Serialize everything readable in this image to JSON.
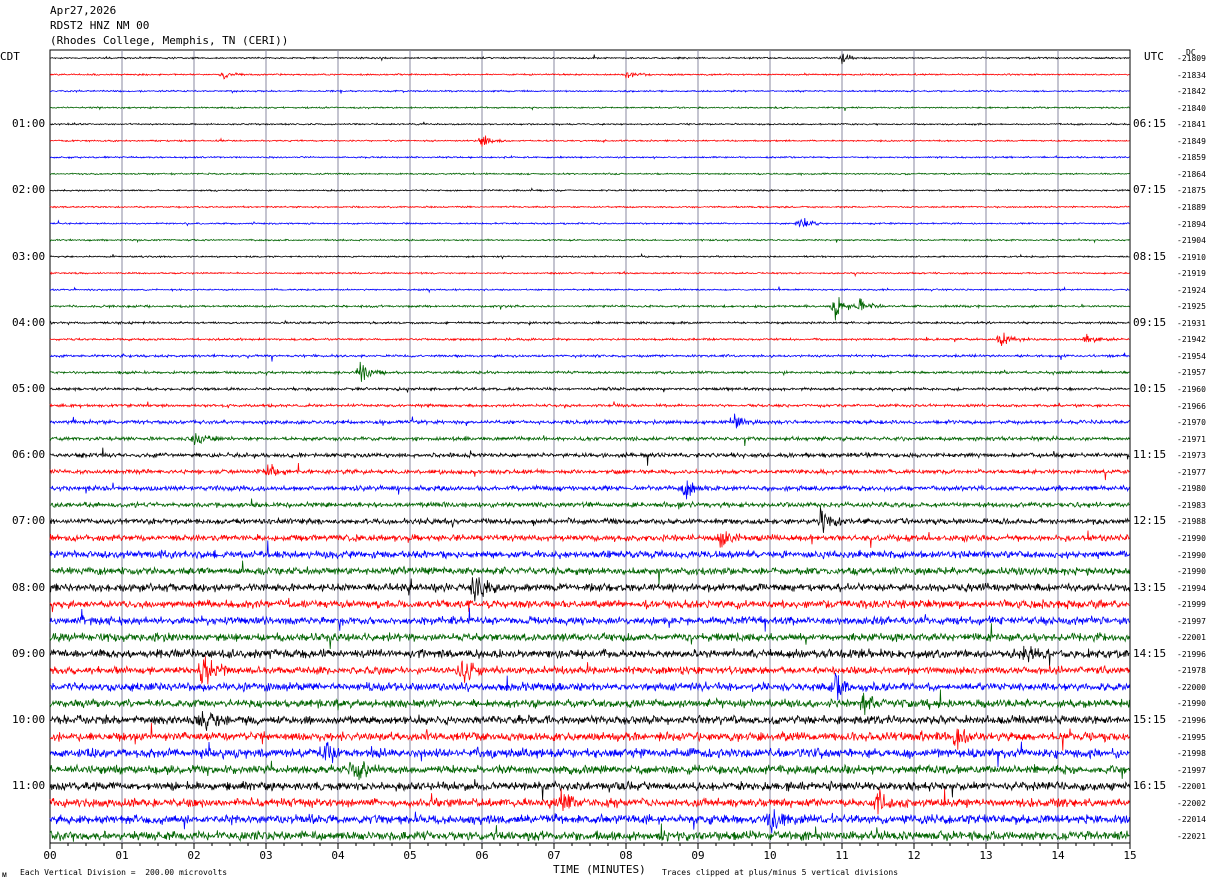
{
  "header": {
    "date": "Apr27,2026",
    "station": "RDST2 HNZ NM 00",
    "location": "(Rhodes College, Memphis, TN (CERI))"
  },
  "left_timezone": "CDT",
  "right_timezone": "UTC",
  "dc_label": "DC",
  "footer": {
    "left_note": "Each Vertical Division =  200.00 microvolts",
    "xlabel": "TIME (MINUTES)",
    "right_note": "Traces clipped at plus/minus 5 vertical divisions",
    "corner_mark": "ᴍ"
  },
  "chart_data": {
    "type": "line",
    "xlabel": "TIME (MINUTES)",
    "xlim": [
      0,
      15
    ],
    "x_ticks": [
      "00",
      "01",
      "02",
      "03",
      "04",
      "05",
      "06",
      "07",
      "08",
      "09",
      "10",
      "11",
      "12",
      "13",
      "14",
      "15"
    ],
    "trace_count": 48,
    "trace_colors": [
      "#000000",
      "#ff0000",
      "#0000ff",
      "#006400"
    ],
    "left_hour_labels": [
      "01:00",
      "02:00",
      "03:00",
      "04:00",
      "05:00",
      "06:00",
      "07:00",
      "08:00",
      "09:00",
      "10:00",
      "11:00"
    ],
    "right_hour_labels": [
      "06:15",
      "07:15",
      "08:15",
      "09:15",
      "10:15",
      "11:15",
      "12:15",
      "13:15",
      "14:15",
      "15:15",
      "16:15"
    ],
    "dc_offsets": [
      "-21809",
      "-21834",
      "-21842",
      "-21840",
      "-21841",
      "-21849",
      "-21859",
      "-21864",
      "-21875",
      "-21889",
      "-21894",
      "-21904",
      "-21910",
      "-21919",
      "-21924",
      "-21925",
      "-21931",
      "-21942",
      "-21954",
      "-21957",
      "-21960",
      "-21966",
      "-21970",
      "-21971",
      "-21973",
      "-21977",
      "-21980",
      "-21983",
      "-21988",
      "-21990",
      "-21990",
      "-21990",
      "-21994",
      "-21999",
      "-21997",
      "-22001",
      "-21996",
      "-21978",
      "-22000",
      "-21990",
      "-21996",
      "-21995",
      "-21998",
      "-21997",
      "-22001",
      "-22002",
      "-22014",
      "-22021"
    ],
    "noise_levels": [
      0.5,
      0.5,
      0.5,
      0.5,
      0.5,
      0.5,
      0.5,
      0.5,
      0.5,
      0.5,
      0.5,
      0.5,
      0.5,
      0.5,
      0.5,
      0.7,
      0.7,
      0.7,
      0.8,
      0.8,
      0.9,
      0.9,
      1.2,
      1.2,
      1.4,
      1.4,
      1.6,
      1.6,
      1.8,
      2.0,
      2.4,
      2.4,
      2.6,
      2.6,
      2.6,
      2.6,
      2.8,
      2.4,
      2.6,
      2.6,
      2.8,
      2.8,
      3.0,
      2.8,
      2.8,
      2.8,
      3.0,
      3.0
    ],
    "events": [
      {
        "trace": 0,
        "minute": 11.0,
        "amp": 4
      },
      {
        "trace": 1,
        "minute": 2.4,
        "amp": 3
      },
      {
        "trace": 1,
        "minute": 8.0,
        "amp": 3
      },
      {
        "trace": 5,
        "minute": 6.0,
        "amp": 5
      },
      {
        "trace": 10,
        "minute": 10.4,
        "amp": 7
      },
      {
        "trace": 15,
        "minute": 10.9,
        "amp": 9
      },
      {
        "trace": 15,
        "minute": 11.2,
        "amp": 9
      },
      {
        "trace": 17,
        "minute": 13.2,
        "amp": 7
      },
      {
        "trace": 17,
        "minute": 14.4,
        "amp": 4
      },
      {
        "trace": 19,
        "minute": 4.3,
        "amp": 11
      },
      {
        "trace": 22,
        "minute": 9.5,
        "amp": 6
      },
      {
        "trace": 23,
        "minute": 2.0,
        "amp": 6
      },
      {
        "trace": 25,
        "minute": 3.0,
        "amp": 7
      },
      {
        "trace": 26,
        "minute": 8.8,
        "amp": 9
      },
      {
        "trace": 28,
        "minute": 10.7,
        "amp": 11
      },
      {
        "trace": 29,
        "minute": 9.3,
        "amp": 9
      },
      {
        "trace": 32,
        "minute": 5.9,
        "amp": 13
      },
      {
        "trace": 36,
        "minute": 13.5,
        "amp": 8
      },
      {
        "trace": 37,
        "minute": 2.1,
        "amp": 18
      },
      {
        "trace": 37,
        "minute": 5.7,
        "amp": 11
      },
      {
        "trace": 38,
        "minute": 10.9,
        "amp": 9
      },
      {
        "trace": 39,
        "minute": 11.3,
        "amp": 8
      },
      {
        "trace": 40,
        "minute": 2.1,
        "amp": 10
      },
      {
        "trace": 41,
        "minute": 12.6,
        "amp": 10
      },
      {
        "trace": 42,
        "minute": 3.8,
        "amp": 9
      },
      {
        "trace": 43,
        "minute": 4.2,
        "amp": 10
      },
      {
        "trace": 45,
        "minute": 7.1,
        "amp": 8
      },
      {
        "trace": 45,
        "minute": 11.5,
        "amp": 9
      },
      {
        "trace": 46,
        "minute": 10.0,
        "amp": 10
      }
    ]
  }
}
